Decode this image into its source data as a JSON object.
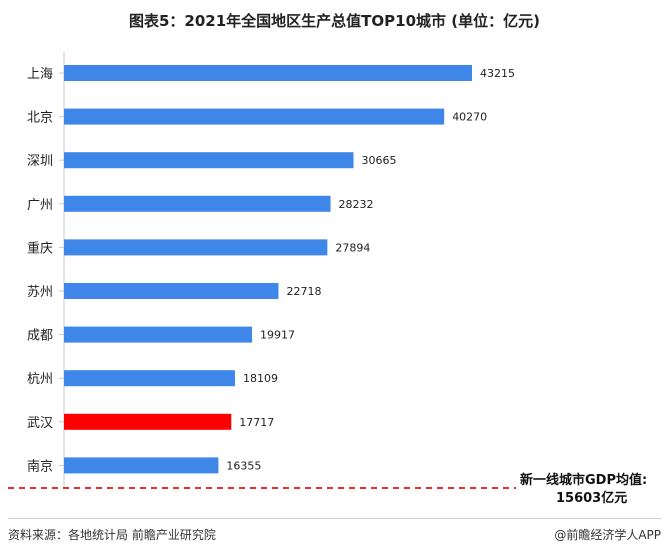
{
  "title": "图表5：2021年全国地区生产总值TOP10城市 (单位：亿元)",
  "chart_data": {
    "type": "bar",
    "orientation": "horizontal",
    "categories": [
      "上海",
      "北京",
      "深圳",
      "广州",
      "重庆",
      "苏州",
      "成都",
      "杭州",
      "武汉",
      "南京"
    ],
    "values": [
      43215,
      40270,
      30665,
      28232,
      27894,
      22718,
      19917,
      18109,
      17717,
      16355
    ],
    "highlight": "武汉",
    "bar_color": "#3e86e8",
    "highlight_color": "#ff0000",
    "reference_line": {
      "value": 15603,
      "style": "dashed",
      "color": "#e03030",
      "label_line1": "新一线城市GDP均值:",
      "label_line2": "15603亿元"
    },
    "xlim": [
      0,
      50000
    ],
    "grid": false
  },
  "footer": {
    "source": "资料来源：各地统计局 前瞻产业研究院",
    "brand": "@前瞻经济学人APP"
  }
}
